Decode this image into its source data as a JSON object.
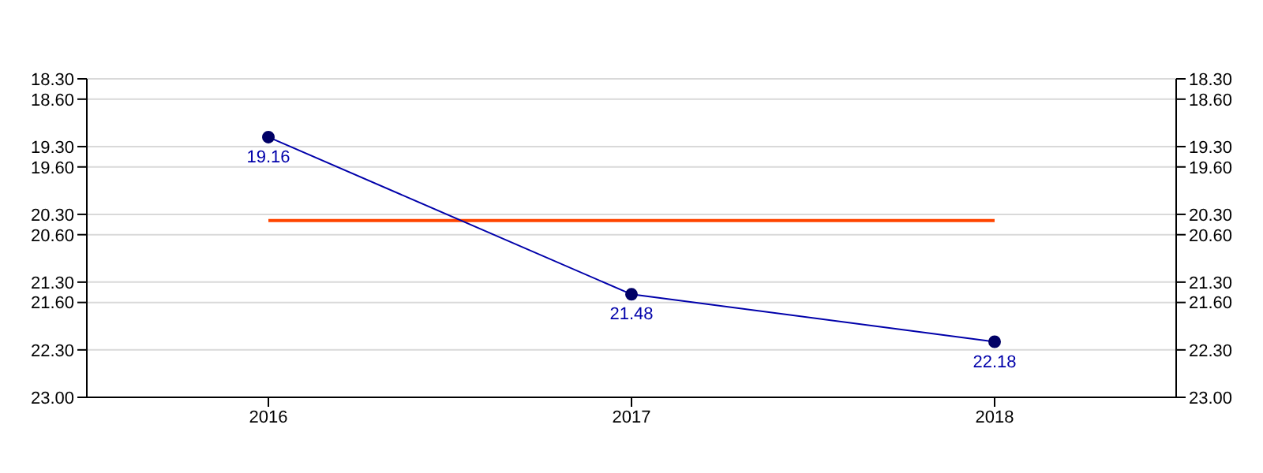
{
  "chart_data": {
    "type": "line",
    "categories": [
      "2016",
      "2017",
      "2018"
    ],
    "series": [
      {
        "color": "#0000aa",
        "values": [
          19.16,
          21.48,
          22.18
        ]
      }
    ],
    "data_labels": true,
    "ylim": [
      23,
      18.3
    ],
    "yticks": [
      {
        "value": 18.3,
        "label": "18.30"
      },
      {
        "value": 18.6,
        "label": "18.60"
      },
      {
        "value": 19.3,
        "label": "19.30"
      },
      {
        "value": 19.6,
        "label": "19.60"
      },
      {
        "value": 20.3,
        "label": "20.30"
      },
      {
        "value": 20.6,
        "label": "20.60"
      },
      {
        "value": 21.3,
        "label": "21.30"
      },
      {
        "value": 21.6,
        "label": "21.60"
      },
      {
        "value": 22.3,
        "label": "22.30"
      },
      {
        "value": 23,
        "label": "23.00"
      }
    ],
    "y2lim": [
      23,
      18.3
    ],
    "y2ticks": [
      {
        "value": 18.3,
        "label": "18.30"
      },
      {
        "value": 18.6,
        "label": "18.60"
      },
      {
        "value": 19.3,
        "label": "19.30"
      },
      {
        "value": 19.6,
        "label": "19.60"
      },
      {
        "value": 20.3,
        "label": "20.30"
      },
      {
        "value": 20.6,
        "label": "20.60"
      },
      {
        "value": 21.3,
        "label": "21.30"
      },
      {
        "value": 21.6,
        "label": "21.60"
      },
      {
        "value": 22.3,
        "label": "22.30"
      },
      {
        "value": 23,
        "label": "23.00"
      }
    ],
    "ref_lines": [
      {
        "axis": "y",
        "value": 20.39,
        "color": "#ff4500"
      }
    ],
    "grid": "y",
    "marker": "circle",
    "line_style": "solid"
  }
}
